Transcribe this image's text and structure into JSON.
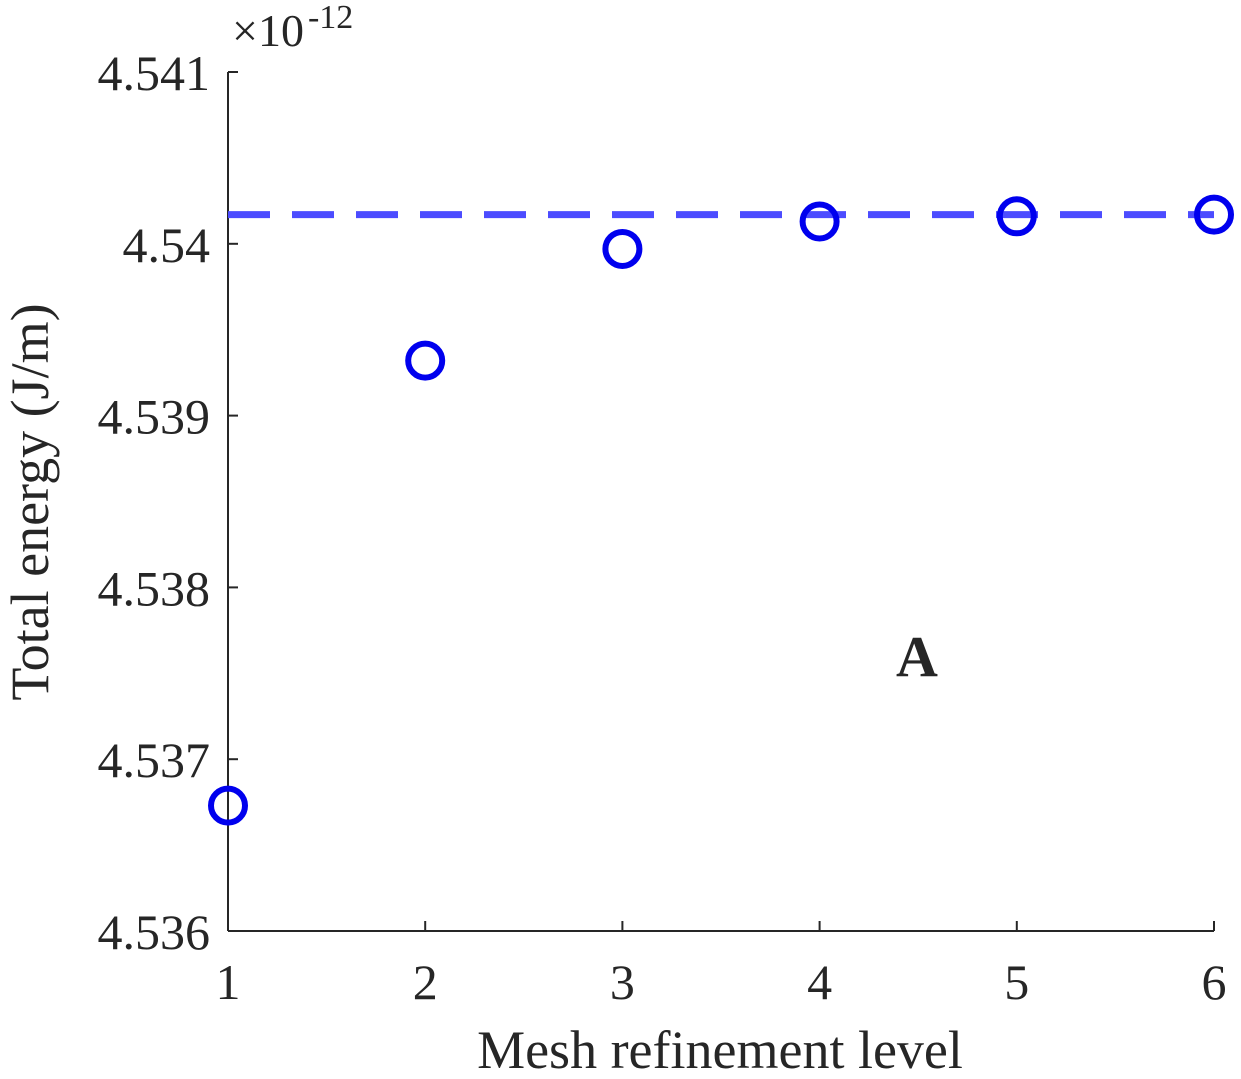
{
  "chart_data": {
    "type": "scatter",
    "x": [
      1,
      2,
      3,
      4,
      5,
      6
    ],
    "y": [
      4.53673,
      4.53932,
      4.53997,
      4.54013,
      4.54016,
      4.54017
    ],
    "xlabel": "Mesh refinement level",
    "ylabel": "Total energy (J/m)",
    "xlim": [
      1,
      6
    ],
    "ylim": [
      4.536,
      4.541
    ],
    "xticks": [
      "1",
      "2",
      "3",
      "4",
      "5",
      "6"
    ],
    "yticks": [
      "4.536",
      "4.537",
      "4.538",
      "4.539",
      "4.54",
      "4.541"
    ],
    "y_exponent": {
      "base": "×10",
      "power": "-12"
    },
    "reference_line": {
      "y": 4.54017,
      "style": "dashed"
    },
    "annotation": "A",
    "grid": false,
    "colors": {
      "marker": "#0000ee",
      "reference_line": "#4c4cff",
      "axis": "#262626"
    }
  }
}
